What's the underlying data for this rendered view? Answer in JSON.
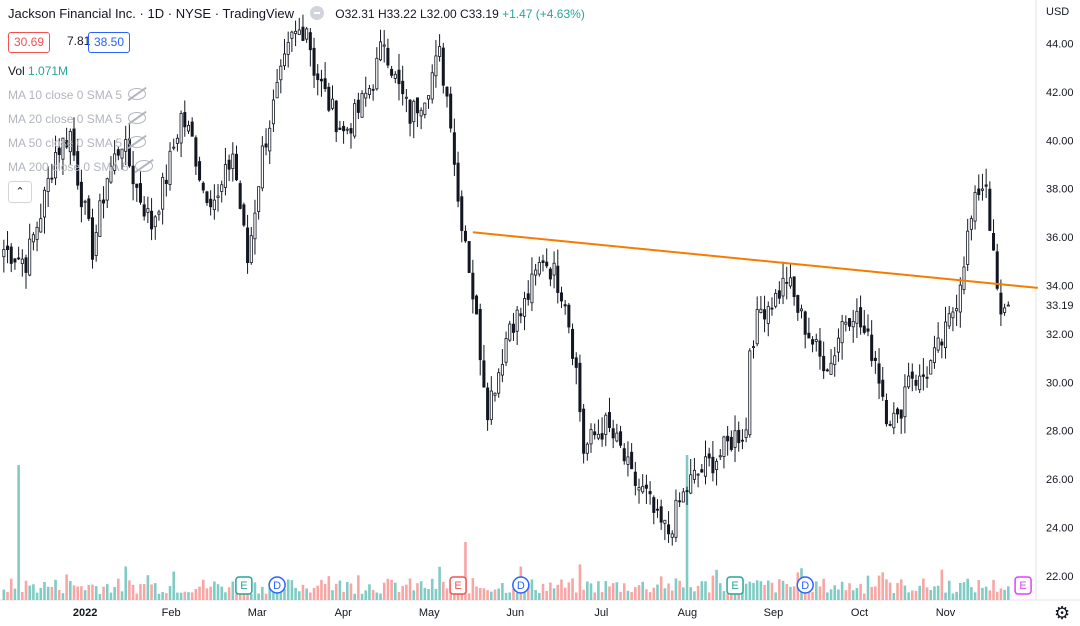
{
  "header": {
    "title": "Jackson Financial Inc.",
    "interval": "1D",
    "exchange": "NYSE",
    "source": "TradingView",
    "ohlc": {
      "open": "O32.31",
      "high": "H33.22",
      "low": "L32.00",
      "close": "C33.19",
      "change": "+1.47 (+4.63%)"
    }
  },
  "quote": {
    "bid": "30.69",
    "spread": "7.81",
    "ask": "38.50"
  },
  "indicators": [
    {
      "name": "Vol",
      "value": "1.071M"
    },
    {
      "name": "MA 10 close 0 SMA 5"
    },
    {
      "name": "MA 20 close 0 SMA 5"
    },
    {
      "name": "MA 50 close 0 SMA 5"
    },
    {
      "name": "MA 200 close 0 SMA 5"
    }
  ],
  "currency": "USD",
  "colors": {
    "up": "#131722",
    "volume_up": "#80cbc4",
    "volume_down": "#f7a6a4",
    "trendline": "#f57c00",
    "earnings": "#26a69a",
    "dividend": "#2962ff"
  },
  "chart_data": {
    "type": "candlestick",
    "ylim": [
      21.0,
      45.8
    ],
    "yticks": [
      "22.00",
      "24.00",
      "26.00",
      "28.00",
      "30.00",
      "32.00",
      "34.00",
      "36.00",
      "38.00",
      "40.00",
      "42.00",
      "44.00"
    ],
    "last_price": "33.19",
    "x_ticks": [
      "2022",
      "Feb",
      "Mar",
      "Apr",
      "May",
      "Jun",
      "Jul",
      "Aug",
      "Sep",
      "Oct",
      "Nov"
    ],
    "trendline": {
      "from": 36.2,
      "to": 33.9
    },
    "price_path": [
      [
        0,
        35.5
      ],
      [
        6,
        35.0
      ],
      [
        10,
        37.0
      ],
      [
        14,
        39.5
      ],
      [
        18,
        40.3
      ],
      [
        20,
        38.5
      ],
      [
        24,
        35.5
      ],
      [
        28,
        38.5
      ],
      [
        32,
        40.0
      ],
      [
        36,
        38.0
      ],
      [
        40,
        36.5
      ],
      [
        44,
        38.5
      ],
      [
        48,
        41.0
      ],
      [
        51,
        40.0
      ],
      [
        54,
        38.0
      ],
      [
        58,
        37.5
      ],
      [
        62,
        39.5
      ],
      [
        66,
        35.0
      ],
      [
        70,
        39.5
      ],
      [
        74,
        42.0
      ],
      [
        78,
        44.2
      ],
      [
        82,
        44.8
      ],
      [
        84,
        43.0
      ],
      [
        88,
        41.5
      ],
      [
        92,
        40.3
      ],
      [
        96,
        41.2
      ],
      [
        100,
        42.5
      ],
      [
        103,
        44.2
      ],
      [
        106,
        42.5
      ],
      [
        110,
        41.0
      ],
      [
        114,
        42.0
      ],
      [
        118,
        43.5
      ],
      [
        121,
        41.0
      ],
      [
        123,
        37.5
      ],
      [
        125,
        36.0
      ],
      [
        128,
        32.5
      ],
      [
        131,
        29.0
      ],
      [
        134,
        30.5
      ],
      [
        137,
        32.5
      ],
      [
        140,
        32.8
      ],
      [
        143,
        34.0
      ],
      [
        146,
        35.2
      ],
      [
        149,
        34.5
      ],
      [
        152,
        33.5
      ],
      [
        155,
        30.5
      ],
      [
        157,
        27.2
      ],
      [
        160,
        27.8
      ],
      [
        163,
        28.2
      ],
      [
        167,
        27.2
      ],
      [
        170,
        26.0
      ],
      [
        174,
        25.3
      ],
      [
        177,
        24.2
      ],
      [
        180,
        23.8
      ],
      [
        183,
        25.0
      ],
      [
        186,
        25.9
      ],
      [
        190,
        26.5
      ],
      [
        194,
        27.0
      ],
      [
        198,
        27.8
      ],
      [
        201,
        28.0
      ],
      [
        202,
        31.5
      ],
      [
        205,
        33.0
      ],
      [
        209,
        33.5
      ],
      [
        212,
        34.3
      ],
      [
        215,
        33.0
      ],
      [
        218,
        32.0
      ],
      [
        221,
        31.0
      ],
      [
        224,
        30.8
      ],
      [
        227,
        32.5
      ],
      [
        230,
        33.0
      ],
      [
        233,
        32.0
      ],
      [
        236,
        31.0
      ],
      [
        239,
        28.8
      ],
      [
        242,
        28.3
      ],
      [
        245,
        30.5
      ],
      [
        248,
        30.0
      ],
      [
        252,
        31.0
      ],
      [
        255,
        32.0
      ],
      [
        258,
        33.5
      ],
      [
        261,
        36.0
      ],
      [
        264,
        38.0
      ],
      [
        266,
        38.3
      ],
      [
        268,
        35.0
      ],
      [
        270,
        32.5
      ],
      [
        272,
        33.19
      ]
    ],
    "events": [
      {
        "type": "E",
        "pos": 65
      },
      {
        "type": "D",
        "pos": 74
      },
      {
        "type": "E",
        "pos": 123
      },
      {
        "type": "D",
        "pos": 140
      },
      {
        "type": "E",
        "pos": 198
      },
      {
        "type": "D",
        "pos": 217
      },
      {
        "type": "E",
        "pos": 276
      }
    ]
  }
}
